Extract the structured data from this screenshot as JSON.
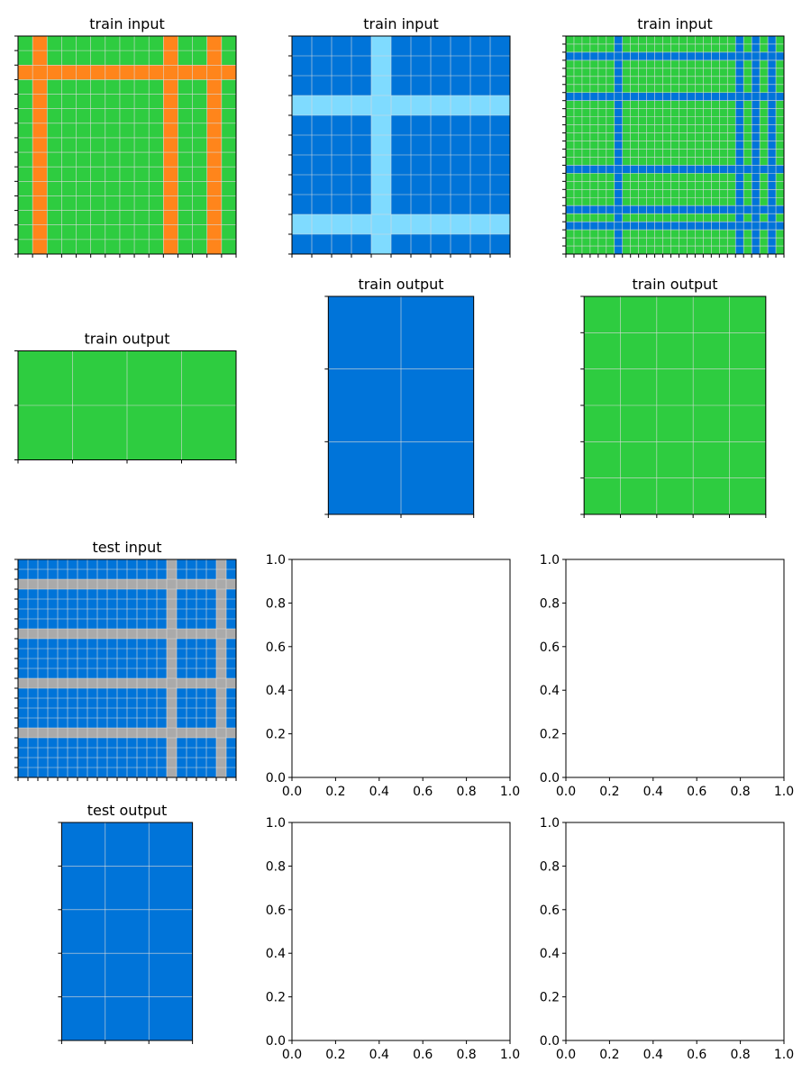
{
  "palette": {
    "green": "#2ECC40",
    "orange": "#FF851B",
    "blue": "#0074D9",
    "light_blue": "#7FDBFF",
    "gray": "#AAAAAA",
    "grid_line": "#d9d9d9",
    "axis": "#000000"
  },
  "panels": [
    {
      "title": "train input",
      "grid": {
        "rows": 15,
        "cols": 15,
        "background": "green",
        "line_color": "orange",
        "line_rows": [
          2
        ],
        "line_cols": [
          1,
          10,
          13
        ]
      }
    },
    {
      "title": "train input",
      "grid": {
        "rows": 11,
        "cols": 11,
        "background": "blue",
        "line_color": "light_blue",
        "line_rows": [
          3,
          9
        ],
        "line_cols": [
          4
        ]
      }
    },
    {
      "title": "train input",
      "grid": {
        "rows": 27,
        "cols": 27,
        "background": "green",
        "line_color": "blue",
        "line_rows": [
          2,
          7,
          16,
          21,
          23
        ],
        "line_cols": [
          6,
          21,
          23,
          25
        ]
      }
    },
    {
      "title": "train output",
      "grid": {
        "rows": 2,
        "cols": 4,
        "background": "green",
        "line_color": "green",
        "line_rows": [],
        "line_cols": []
      }
    },
    {
      "title": "train output",
      "grid": {
        "rows": 3,
        "cols": 2,
        "background": "blue",
        "line_color": "blue",
        "line_rows": [],
        "line_cols": []
      }
    },
    {
      "title": "train output",
      "grid": {
        "rows": 6,
        "cols": 5,
        "background": "green",
        "line_color": "green",
        "line_rows": [],
        "line_cols": []
      }
    },
    {
      "title": "test input",
      "grid": {
        "rows": 22,
        "cols": 22,
        "background": "blue",
        "line_color": "gray",
        "line_rows": [
          2,
          7,
          12,
          17
        ],
        "line_cols": [
          15,
          20
        ]
      }
    },
    {
      "title": "",
      "empty": true
    },
    {
      "title": "",
      "empty": true
    },
    {
      "title": "test output",
      "grid": {
        "rows": 5,
        "cols": 3,
        "background": "blue",
        "line_color": "blue",
        "line_rows": [],
        "line_cols": []
      }
    },
    {
      "title": "",
      "empty": true
    },
    {
      "title": "",
      "empty": true
    }
  ],
  "empty_axis_ticks": [
    "0.0",
    "0.2",
    "0.4",
    "0.6",
    "0.8",
    "1.0"
  ]
}
